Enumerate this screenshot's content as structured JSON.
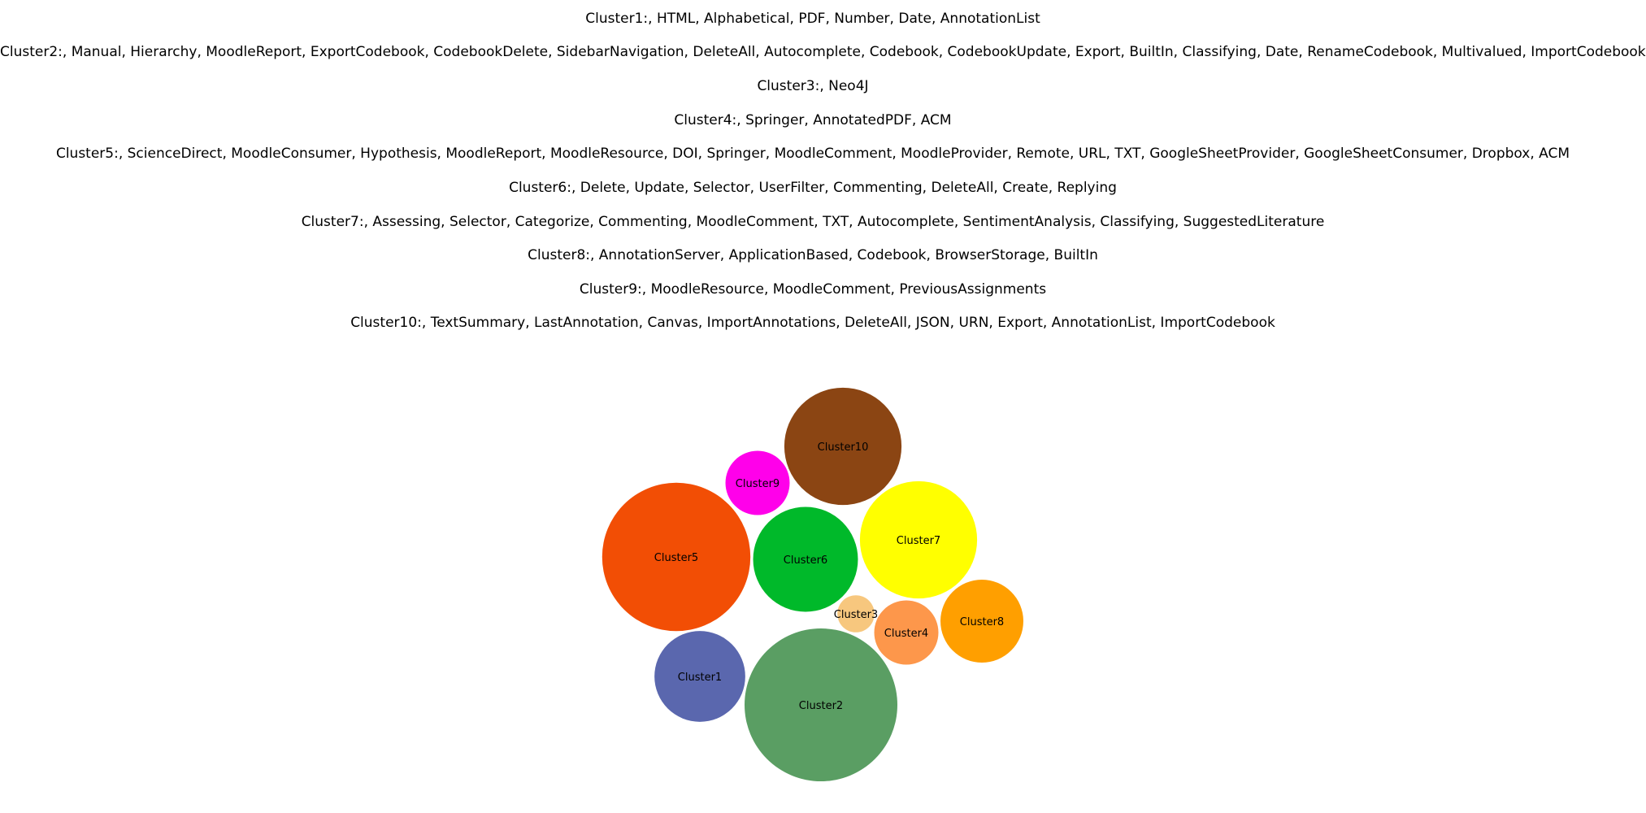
{
  "chart_data": {
    "type": "bubble",
    "legend_lines": [
      "Cluster1:, HTML, Alphabetical, PDF, Number, Date, AnnotationList",
      "Cluster2:, Manual, Hierarchy, MoodleReport, ExportCodebook, CodebookDelete, SidebarNavigation, DeleteAll, Autocomplete, Codebook, CodebookUpdate, Export, BuiltIn, Classifying, Date, RenameCodebook, Multivalued, ImportCodebook",
      "Cluster3:, Neo4J",
      "Cluster4:, Springer, AnnotatedPDF, ACM",
      "Cluster5:, ScienceDirect, MoodleConsumer, Hypothesis, MoodleReport, MoodleResource, DOI, Springer, MoodleComment, MoodleProvider, Remote, URL, TXT, GoogleSheetProvider, GoogleSheetConsumer, Dropbox, ACM",
      "Cluster6:, Delete, Update, Selector, UserFilter, Commenting, DeleteAll, Create, Replying",
      "Cluster7:, Assessing, Selector, Categorize, Commenting, MoodleComment, TXT, Autocomplete, SentimentAnalysis, Classifying, SuggestedLiterature",
      "Cluster8:, AnnotationServer, ApplicationBased, Codebook, BrowserStorage, BuiltIn",
      "Cluster9:, MoodleResource, MoodleComment, PreviousAssignments",
      "Cluster10:, TextSummary, LastAnnotation, Canvas, ImportAnnotations, DeleteAll, JSON, URN, Export, AnnotationList, ImportCodebook"
    ],
    "clusters": [
      {
        "label": "Cluster1",
        "size": 6,
        "color": "#5a67ae"
      },
      {
        "label": "Cluster2",
        "size": 17,
        "color": "#5a9e63"
      },
      {
        "label": "Cluster3",
        "size": 1,
        "color": "#f7c77e"
      },
      {
        "label": "Cluster4",
        "size": 3,
        "color": "#fd974b"
      },
      {
        "label": "Cluster5",
        "size": 16,
        "color": "#f24e05"
      },
      {
        "label": "Cluster6",
        "size": 8,
        "color": "#00b92a"
      },
      {
        "label": "Cluster7",
        "size": 10,
        "color": "#ffff00"
      },
      {
        "label": "Cluster8",
        "size": 5,
        "color": "#ff9f00"
      },
      {
        "label": "Cluster9",
        "size": 3,
        "color": "#ff00ea"
      },
      {
        "label": "Cluster10",
        "size": 10,
        "color": "#8b4513"
      }
    ]
  }
}
